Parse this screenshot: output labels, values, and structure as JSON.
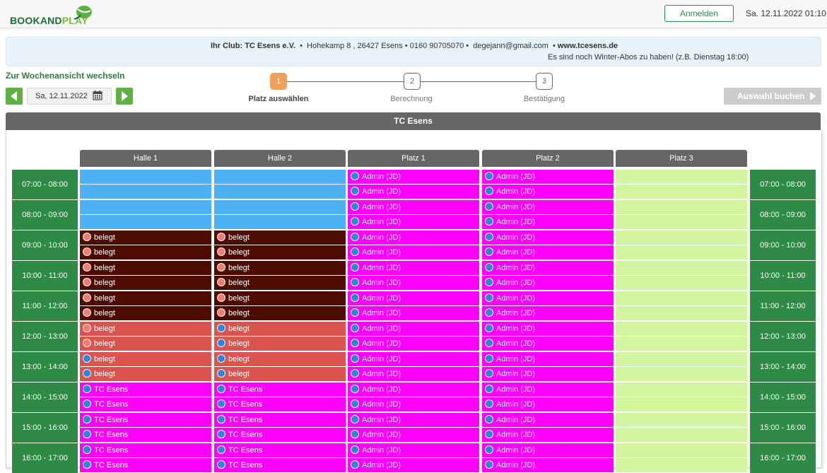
{
  "brand": {
    "book": "BOOK",
    "and": "AND",
    "play": "PLAY"
  },
  "header": {
    "login_label": "Anmelden",
    "datetime": "Sa. 12.11.2022 01:10"
  },
  "info": {
    "club_label": "Ihr Club: TC Esens e.V.",
    "address": "Hohekamp 8 , 26427 Esens",
    "phone": "0160 90705070",
    "email": "degejann@gmail.com",
    "website": "www.tcesens.de",
    "notice": "Es sind noch Winter-Abos zu haben! (z.B. Dienstag 18:00)"
  },
  "controls": {
    "week_link": "Zur Wochenansicht wechseln",
    "date_value": "Sa, 12.11.2022"
  },
  "steps": [
    {
      "number": "1",
      "label": "Platz auswählen"
    },
    {
      "number": "2",
      "label": "Berechnung"
    },
    {
      "number": "3",
      "label": "Bestätigung"
    }
  ],
  "book_button": "Auswahl buchen",
  "grid": {
    "title": "TC Esens",
    "courts": [
      "Halle 1",
      "Halle 2",
      "Platz 1",
      "Platz 2",
      "Platz 3"
    ],
    "times": [
      "07:00 - 08:00",
      "08:00 - 09:00",
      "09:00 - 10:00",
      "10:00 - 11:00",
      "11:00 - 12:00",
      "12:00 - 13:00",
      "13:00 - 14:00",
      "14:00 - 15:00",
      "15:00 - 16:00",
      "16:00 - 17:00"
    ],
    "slot_labels": {
      "belegt": "belegt",
      "tc": "TC Esens",
      "admin": "Admin (JD)"
    },
    "colors": {
      "free_blue": "#4db2f5",
      "belegt_dark": "#4e0c00",
      "belegt_red": "#d9534f",
      "admin_magenta": "#ff00ff",
      "free_green": "#d3f59f",
      "time_green": "#2e8b45",
      "step_active": "#f0a058"
    }
  },
  "icons": [
    "calendar-icon",
    "chevron-left-icon",
    "chevron-right-icon",
    "status-dot-icon"
  ]
}
